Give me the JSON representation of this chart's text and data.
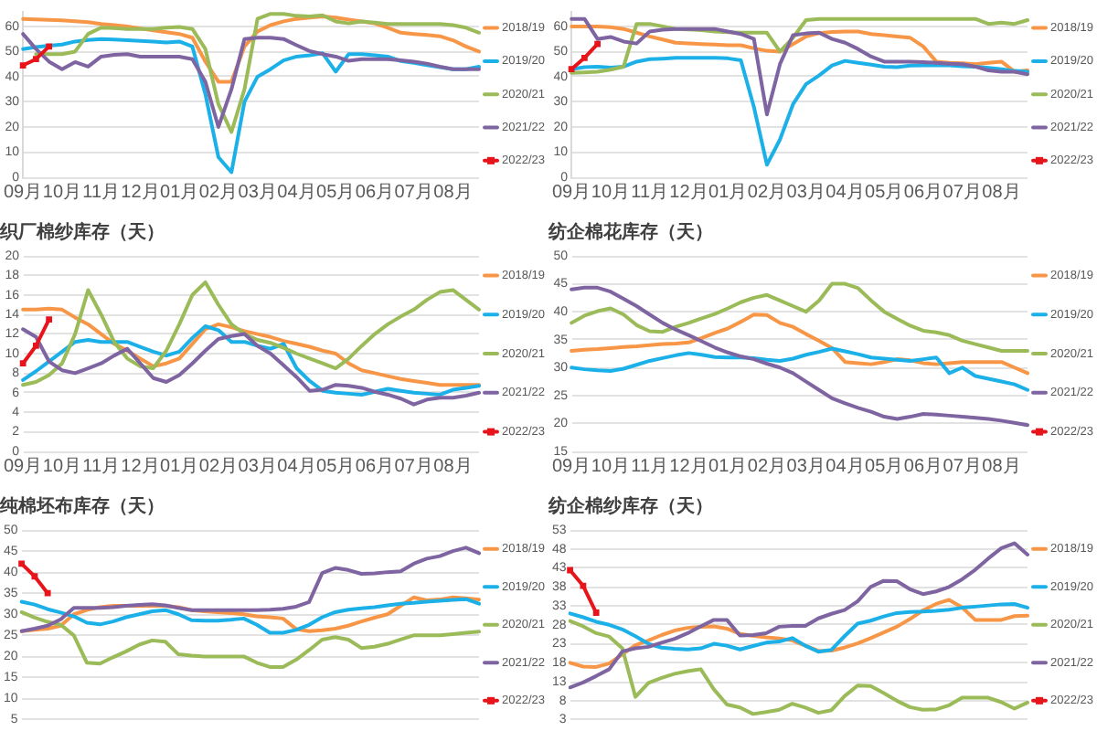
{
  "chart_data": [
    {
      "type": "line",
      "grid": "y",
      "legend": "right",
      "marker": "none",
      "categories": [
        "09月",
        null,
        null,
        "10月",
        null,
        null,
        "11月",
        null,
        null,
        "12月",
        null,
        null,
        "01月",
        null,
        null,
        "02月",
        null,
        null,
        "03月",
        null,
        null,
        "04月",
        null,
        null,
        "05月",
        null,
        null,
        "06月",
        null,
        null,
        "07月",
        null,
        null,
        "08月",
        null,
        null
      ],
      "ylim": [
        0,
        66
      ],
      "yticks": [
        0,
        10,
        20,
        30,
        40,
        50,
        60
      ],
      "series": [
        {
          "name": "2018/19",
          "color": "#f79646",
          "values": [
            63,
            62.8,
            62.6,
            62.4,
            62.1,
            61.7,
            61,
            60.5,
            60,
            59.2,
            58.4,
            57.7,
            57,
            55.5,
            46,
            38,
            38,
            52,
            58,
            60.5,
            62,
            63,
            63.5,
            64,
            63.5,
            62.7,
            62,
            61.2,
            59.5,
            57.5,
            57,
            56.6,
            56.1,
            54.5,
            52,
            50
          ]
        },
        {
          "name": "2019/20",
          "color": "#1cb0e8",
          "values": [
            51,
            51.8,
            52.3,
            52.8,
            54,
            54.6,
            55,
            54.8,
            54.5,
            54.2,
            54,
            53.6,
            54,
            52,
            33,
            8,
            2,
            30,
            40,
            43,
            46.5,
            48,
            48.5,
            49.3,
            42,
            49,
            49,
            48.5,
            48,
            46.2,
            45.5,
            44.6,
            43.8,
            43,
            43,
            44
          ]
        },
        {
          "name": "2020/21",
          "color": "#9bbb59",
          "values": [
            null,
            49,
            49,
            49,
            50,
            57,
            59.5,
            59.3,
            59,
            59,
            59,
            59.5,
            59.8,
            59,
            51,
            29,
            18,
            35,
            63,
            65,
            65,
            64.2,
            64,
            64.4,
            62,
            61.2,
            62,
            61.5,
            61,
            61,
            61,
            61,
            61,
            60.5,
            59.5,
            57.5
          ]
        },
        {
          "name": "2021/22",
          "color": "#7f64a2",
          "values": [
            57,
            51,
            46,
            43,
            45.8,
            44,
            48,
            48.7,
            49,
            48,
            48,
            48,
            48,
            47,
            38,
            20,
            35,
            55,
            55.5,
            55.5,
            55,
            52.5,
            50.2,
            49,
            48,
            46.3,
            47,
            47,
            47,
            46.5,
            46,
            45.2,
            44,
            43,
            43,
            43
          ]
        },
        {
          "name": "2022/23",
          "color": "#e8141b",
          "marker": "square",
          "values": [
            44.5,
            47,
            52,
            null,
            null,
            null,
            null,
            null,
            null,
            null,
            null,
            null,
            null,
            null,
            null,
            null,
            null,
            null,
            null,
            null,
            null,
            null,
            null,
            null,
            null,
            null,
            null,
            null,
            null,
            null,
            null,
            null,
            null,
            null,
            null,
            null
          ]
        }
      ]
    },
    {
      "type": "line",
      "grid": "y",
      "legend": "right",
      "marker": "none",
      "categories": [
        "09月",
        null,
        null,
        "10月",
        null,
        null,
        "11月",
        null,
        null,
        "12月",
        null,
        null,
        "01月",
        null,
        null,
        "02月",
        null,
        null,
        "03月",
        null,
        null,
        "04月",
        null,
        null,
        "05月",
        null,
        null,
        "06月",
        null,
        null,
        "07月",
        null,
        null,
        "08月",
        null,
        null
      ],
      "ylim": [
        0,
        66
      ],
      "yticks": [
        0,
        10,
        20,
        30,
        40,
        50,
        60
      ],
      "series": [
        {
          "name": "2018/19",
          "color": "#f79646",
          "values": [
            60,
            60,
            60,
            59.7,
            59,
            57.5,
            56,
            54.8,
            53.5,
            53.2,
            53,
            52.8,
            52.5,
            52.5,
            51.3,
            50.3,
            50,
            53,
            56,
            57.3,
            57.8,
            58,
            58,
            57,
            56.5,
            56,
            55.5,
            52,
            46,
            45.5,
            45.3,
            45,
            45.5,
            46,
            42,
            42.5
          ]
        },
        {
          "name": "2019/20",
          "color": "#1cb0e8",
          "values": [
            43,
            43.8,
            44,
            43.6,
            44,
            46,
            47,
            47.2,
            47.5,
            47.5,
            47.5,
            47.5,
            47.3,
            46.5,
            28,
            5,
            15,
            29,
            37,
            40.5,
            44.5,
            46.3,
            45.5,
            44.8,
            44,
            43.8,
            44.4,
            44.5,
            44.5,
            44.5,
            44.2,
            44,
            43.5,
            43,
            42.3,
            42
          ]
        },
        {
          "name": "2020/21",
          "color": "#9bbb59",
          "values": [
            41.5,
            41.7,
            42,
            42.8,
            44,
            61,
            61,
            60,
            59,
            58.8,
            58.5,
            58,
            57.7,
            57.5,
            57.5,
            57.5,
            50,
            55.5,
            62.5,
            63,
            63,
            63,
            63,
            63,
            63,
            63,
            63,
            63,
            63,
            63,
            63,
            63,
            61,
            61.5,
            61,
            62.5
          ]
        },
        {
          "name": "2021/22",
          "color": "#7f64a2",
          "values": [
            63,
            63,
            55,
            55.8,
            54,
            53.2,
            58,
            58.7,
            59,
            59,
            59,
            59,
            58,
            57,
            55,
            25,
            45,
            56.5,
            57.2,
            57.5,
            55,
            53.5,
            51,
            48,
            46,
            46,
            46,
            45.8,
            45.5,
            45.2,
            45,
            44,
            42.5,
            42,
            42,
            41
          ]
        },
        {
          "name": "2022/23",
          "color": "#e8141b",
          "marker": "square",
          "values": [
            43,
            47.5,
            53,
            null,
            null,
            null,
            null,
            null,
            null,
            null,
            null,
            null,
            null,
            null,
            null,
            null,
            null,
            null,
            null,
            null,
            null,
            null,
            null,
            null,
            null,
            null,
            null,
            null,
            null,
            null,
            null,
            null,
            null,
            null,
            null,
            null
          ]
        }
      ]
    },
    {
      "type": "line",
      "title": "织厂棉纱库存（天）",
      "grid": "y",
      "legend": "right",
      "marker": "none",
      "categories": [
        "09月",
        null,
        null,
        "10月",
        null,
        null,
        "11月",
        null,
        null,
        "12月",
        null,
        null,
        "01月",
        null,
        null,
        "02月",
        null,
        null,
        "03月",
        null,
        null,
        "04月",
        null,
        null,
        "05月",
        null,
        null,
        "06月",
        null,
        null,
        "07月",
        null,
        null,
        "08月",
        null,
        null
      ],
      "ylim": [
        0,
        20
      ],
      "yticks": [
        0,
        2,
        4,
        6,
        8,
        10,
        12,
        14,
        16,
        18,
        20
      ],
      "series": [
        {
          "name": "2018/19",
          "color": "#f79646",
          "values": [
            14.5,
            14.5,
            14.6,
            14.5,
            13.7,
            13,
            12,
            11,
            10.3,
            9.5,
            8.7,
            9,
            9.5,
            11,
            12.5,
            13,
            12.7,
            12.3,
            12,
            11.7,
            11.3,
            11,
            10.7,
            10.3,
            10,
            9,
            8.3,
            8,
            7.7,
            7.4,
            7.2,
            7,
            6.8,
            6.8,
            6.8,
            6.8
          ]
        },
        {
          "name": "2019/20",
          "color": "#1cb0e8",
          "values": [
            7.3,
            8.2,
            9.2,
            10.2,
            11.2,
            11.4,
            11.2,
            11.2,
            11.2,
            10.7,
            10.2,
            9.8,
            10.2,
            11.6,
            12.8,
            12.4,
            11.2,
            11.2,
            10.8,
            10.5,
            11,
            8.5,
            7.2,
            6.2,
            6,
            5.9,
            5.8,
            6.1,
            6.4,
            6.2,
            6,
            5.9,
            5.8,
            6.3,
            6.5,
            6.7
          ]
        },
        {
          "name": "2020/21",
          "color": "#9bbb59",
          "values": [
            6.8,
            7.1,
            7.8,
            9,
            12,
            16.5,
            14,
            11.2,
            9.5,
            8.7,
            8.5,
            10.3,
            13,
            16,
            17.3,
            15,
            13,
            12,
            11.4,
            11.1,
            10.6,
            10,
            9.5,
            9,
            8.5,
            9.5,
            10.8,
            12,
            13,
            13.8,
            14.5,
            15.5,
            16.3,
            16.5,
            15.5,
            14.5
          ]
        },
        {
          "name": "2021/22",
          "color": "#7f64a2",
          "values": [
            12.5,
            11.7,
            9.2,
            8.3,
            8,
            8.5,
            9,
            9.8,
            10.5,
            9,
            7.5,
            7.1,
            7.8,
            9,
            10.3,
            11.5,
            11.8,
            12,
            10.8,
            10,
            8.8,
            7.6,
            6.2,
            6.3,
            6.8,
            6.7,
            6.5,
            6.1,
            5.8,
            5.4,
            4.8,
            5.3,
            5.5,
            5.5,
            5.7,
            6
          ]
        },
        {
          "name": "2022/23",
          "color": "#e8141b",
          "marker": "square",
          "values": [
            9,
            10.8,
            13.5,
            null,
            null,
            null,
            null,
            null,
            null,
            null,
            null,
            null,
            null,
            null,
            null,
            null,
            null,
            null,
            null,
            null,
            null,
            null,
            null,
            null,
            null,
            null,
            null,
            null,
            null,
            null,
            null,
            null,
            null,
            null,
            null,
            null
          ]
        }
      ]
    },
    {
      "type": "line",
      "title": "纺企棉花库存（天）",
      "grid": "y",
      "legend": "right",
      "marker": "none",
      "categories": [
        "09月",
        null,
        null,
        "10月",
        null,
        null,
        "11月",
        null,
        null,
        "12月",
        null,
        null,
        "01月",
        null,
        null,
        "02月",
        null,
        null,
        "03月",
        null,
        null,
        "04月",
        null,
        null,
        "05月",
        null,
        null,
        "06月",
        null,
        null,
        "07月",
        null,
        null,
        "08月",
        null,
        null
      ],
      "ylim": [
        15,
        50
      ],
      "yticks": [
        15,
        20,
        25,
        30,
        35,
        40,
        45,
        50
      ],
      "series": [
        {
          "name": "2018/19",
          "color": "#f79646",
          "values": [
            33,
            33.2,
            33.3,
            33.5,
            33.7,
            33.8,
            34,
            34.2,
            34.3,
            34.5,
            35.3,
            36.2,
            37,
            38.2,
            39.5,
            39.4,
            38,
            37.3,
            36,
            34.8,
            33.5,
            31,
            30.8,
            30.6,
            31,
            31.5,
            31.3,
            30.8,
            30.6,
            30.8,
            31,
            31,
            31,
            31,
            30,
            29
          ]
        },
        {
          "name": "2019/20",
          "color": "#1cb0e8",
          "values": [
            30,
            29.7,
            29.5,
            29.4,
            29.8,
            30.5,
            31.2,
            31.7,
            32.2,
            32.6,
            32.3,
            31.9,
            31.8,
            31.8,
            31.7,
            31.4,
            31.2,
            31.6,
            32.3,
            32.8,
            33.4,
            32.9,
            32.4,
            31.8,
            31.6,
            31.4,
            31.2,
            31.5,
            31.8,
            29,
            30,
            28.5,
            28,
            27.5,
            27,
            26
          ]
        },
        {
          "name": "2020/21",
          "color": "#9bbb59",
          "values": [
            38,
            39.3,
            40.1,
            40.6,
            39.5,
            37.6,
            36.5,
            36.4,
            37.3,
            38,
            38.8,
            39.6,
            40.6,
            41.7,
            42.5,
            43,
            42,
            41,
            40,
            42,
            45,
            45,
            44.2,
            42,
            40,
            38.7,
            37.5,
            36.6,
            36.3,
            35.8,
            34.8,
            34.2,
            33.6,
            33,
            33,
            33
          ]
        },
        {
          "name": "2021/22",
          "color": "#7f64a2",
          "values": [
            44,
            44.3,
            44.3,
            43.6,
            42.3,
            41,
            39.5,
            38,
            36.8,
            35.8,
            34.7,
            33.6,
            32.7,
            32,
            31.5,
            30.7,
            30,
            29,
            27.5,
            26,
            24.5,
            23.6,
            22.8,
            22.1,
            21.2,
            20.8,
            21.2,
            21.7,
            21.6,
            21.4,
            21.2,
            21,
            20.8,
            20.5,
            20.1,
            19.7
          ]
        },
        {
          "name": "2022/23",
          "color": "#e8141b",
          "marker": "square",
          "values": [
            null,
            null,
            null,
            null,
            null,
            null,
            null,
            null,
            null,
            null,
            null,
            null,
            null,
            null,
            null,
            null,
            null,
            null,
            null,
            null,
            null,
            null,
            null,
            null,
            null,
            null,
            null,
            null,
            null,
            null,
            null,
            null,
            null,
            null,
            null,
            null
          ]
        }
      ]
    },
    {
      "type": "line",
      "title": "纯棉坯布库存（天）",
      "grid": "y",
      "legend": "right",
      "marker": "none",
      "tick_labels": "y",
      "categories": [
        null,
        null,
        null,
        null,
        null,
        null,
        null,
        null,
        null,
        null,
        null,
        null,
        null,
        null,
        null,
        null,
        null,
        null,
        null,
        null,
        null,
        null,
        null,
        null,
        null,
        null,
        null,
        null,
        null,
        null,
        null,
        null,
        null,
        null,
        null,
        null
      ],
      "ylim": [
        5,
        50
      ],
      "yticks": [
        5,
        10,
        15,
        20,
        25,
        30,
        35,
        40,
        45,
        50
      ],
      "series": [
        {
          "name": "2018/19",
          "color": "#f79646",
          "values": [
            26,
            26.3,
            26.6,
            27.3,
            30,
            31,
            31.7,
            32,
            32,
            32,
            32,
            32,
            31.7,
            31,
            30.7,
            30.5,
            30.3,
            30,
            29.5,
            29.3,
            29,
            26.5,
            26,
            26.2,
            26.6,
            27.3,
            28.3,
            29.2,
            30,
            32,
            34,
            33.3,
            33.5,
            34,
            33.8,
            33.5
          ]
        },
        {
          "name": "2019/20",
          "color": "#1cb0e8",
          "values": [
            33,
            32.3,
            31.2,
            30.4,
            29.5,
            28,
            27.6,
            28.3,
            29.3,
            30,
            30.7,
            31,
            30,
            28.6,
            28.5,
            28.5,
            28.7,
            29,
            27.5,
            25.6,
            25.6,
            26.3,
            27.5,
            29.3,
            30.5,
            31.1,
            31.4,
            31.7,
            32.1,
            32.5,
            32.7,
            33,
            33.2,
            33.4,
            33.6,
            32.5
          ]
        },
        {
          "name": "2020/21",
          "color": "#9bbb59",
          "values": [
            30.5,
            29.2,
            28.2,
            27.5,
            25,
            18.5,
            18.3,
            19.8,
            21.2,
            22.8,
            23.8,
            23.5,
            20.5,
            20.2,
            20,
            20,
            20,
            20,
            18.5,
            17.5,
            17.5,
            19.2,
            21.5,
            24,
            24.6,
            24,
            22,
            22.3,
            23,
            24,
            25,
            25,
            25,
            25.3,
            25.6,
            25.9
          ]
        },
        {
          "name": "2021/22",
          "color": "#7f64a2",
          "values": [
            26,
            26.6,
            27.3,
            28.8,
            31.5,
            31.5,
            31.5,
            31.7,
            32,
            32.2,
            32.4,
            32.1,
            31.5,
            31,
            31,
            31,
            31,
            31,
            31,
            31.1,
            31.3,
            31.8,
            32.9,
            39.8,
            41,
            40.5,
            39.6,
            39.7,
            40,
            40.2,
            42,
            43.2,
            43.8,
            45,
            45.8,
            44.5
          ]
        },
        {
          "name": "2022/23",
          "color": "#e8141b",
          "marker": "square",
          "values": [
            42,
            39,
            35,
            null,
            null,
            null,
            null,
            null,
            null,
            null,
            null,
            null,
            null,
            null,
            null,
            null,
            null,
            null,
            null,
            null,
            null,
            null,
            null,
            null,
            null,
            null,
            null,
            null,
            null,
            null,
            null,
            null,
            null,
            null,
            null,
            null
          ]
        }
      ]
    },
    {
      "type": "line",
      "title": "纺企棉纱库存（天）",
      "grid": "y",
      "legend": "right",
      "marker": "none",
      "tick_labels": "y",
      "categories": [
        null,
        null,
        null,
        null,
        null,
        null,
        null,
        null,
        null,
        null,
        null,
        null,
        null,
        null,
        null,
        null,
        null,
        null,
        null,
        null,
        null,
        null,
        null,
        null,
        null,
        null,
        null,
        null,
        null,
        null,
        null,
        null,
        null,
        null,
        null,
        null
      ],
      "ylim": [
        3,
        53
      ],
      "yticks": [
        3,
        8,
        13,
        18,
        23,
        28,
        33,
        38,
        43,
        48,
        53
      ],
      "series": [
        {
          "name": "2018/19",
          "color": "#f79646",
          "values": [
            18,
            17,
            16.9,
            17.8,
            20.2,
            22.6,
            23.9,
            25.3,
            26.5,
            27.2,
            27.5,
            27.6,
            27,
            25.6,
            25.1,
            24.7,
            24.4,
            23.9,
            22.5,
            21.1,
            21.2,
            22,
            23.1,
            24.5,
            26,
            27.5,
            29.5,
            31.8,
            33.5,
            34.6,
            32.6,
            29.3,
            29.3,
            29.3,
            30.3,
            30.4
          ]
        },
        {
          "name": "2019/20",
          "color": "#1cb0e8",
          "values": [
            31,
            30,
            28.8,
            28,
            26.8,
            25,
            23,
            22,
            21.7,
            21.5,
            21.8,
            23,
            22.5,
            21.5,
            22.4,
            23.3,
            23.6,
            24.5,
            22.5,
            20.9,
            21.4,
            25,
            28.3,
            29.1,
            30.2,
            31.1,
            31.4,
            31.5,
            31.7,
            32,
            32.5,
            32.8,
            33.1,
            33.4,
            33.5,
            32.5
          ]
        },
        {
          "name": "2020/21",
          "color": "#9bbb59",
          "values": [
            29,
            27.6,
            25.8,
            24.9,
            21.8,
            9,
            12.7,
            14,
            15.1,
            15.8,
            16.3,
            11,
            7,
            6.2,
            4.5,
            5,
            5.6,
            7.2,
            6.2,
            4.8,
            5.5,
            9.2,
            12,
            11.9,
            10,
            8,
            6.3,
            5.6,
            5.7,
            6.8,
            8.8,
            8.8,
            8.8,
            7.6,
            5.9,
            7.5
          ]
        },
        {
          "name": "2021/22",
          "color": "#7f64a2",
          "values": [
            11.5,
            12.8,
            14.5,
            16.3,
            21,
            21.8,
            22.2,
            23.3,
            24.3,
            25.8,
            27.6,
            29.3,
            29.3,
            25.2,
            25.3,
            25.8,
            27.5,
            27.7,
            27.7,
            29.7,
            30.9,
            31.9,
            34.2,
            38,
            39.6,
            39.5,
            37.4,
            36.1,
            36.8,
            38,
            40,
            42.5,
            45.5,
            48.2,
            49.5,
            46.5
          ]
        },
        {
          "name": "2022/23",
          "color": "#e8141b",
          "marker": "square",
          "values": [
            42.4,
            38.3,
            31.2,
            null,
            null,
            null,
            null,
            null,
            null,
            null,
            null,
            null,
            null,
            null,
            null,
            null,
            null,
            null,
            null,
            null,
            null,
            null,
            null,
            null,
            null,
            null,
            null,
            null,
            null,
            null,
            null,
            null,
            null,
            null,
            null,
            null
          ]
        }
      ]
    }
  ]
}
